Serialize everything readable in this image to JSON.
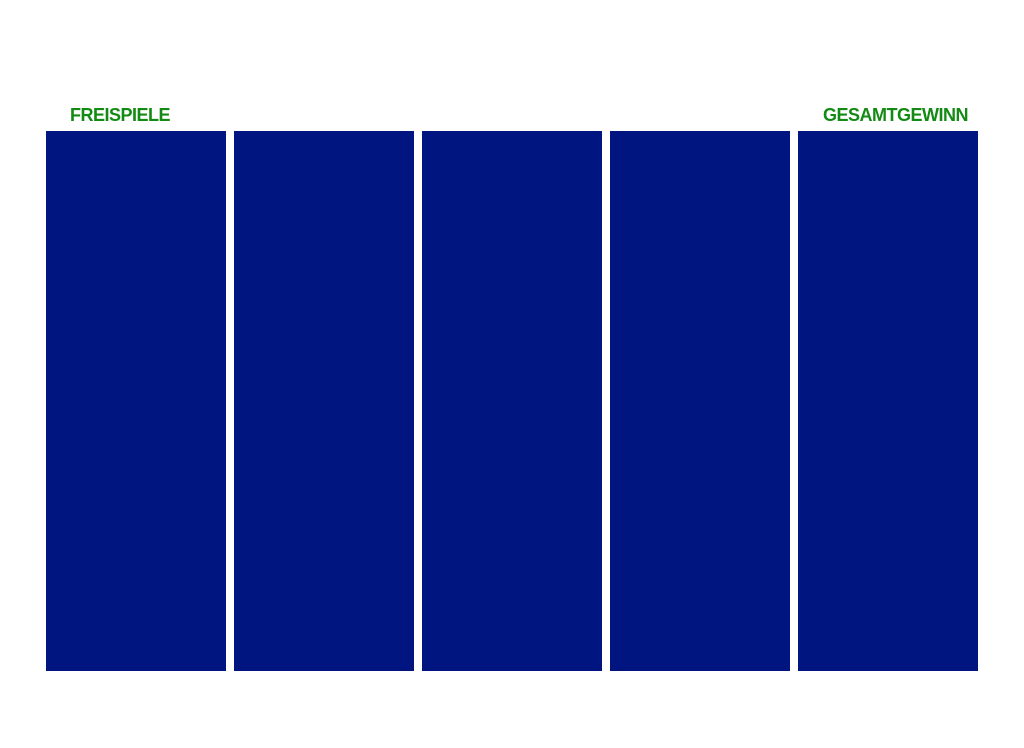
{
  "labels": {
    "left": "FREISPIELE",
    "right": "GESAMTGEWINN"
  }
}
